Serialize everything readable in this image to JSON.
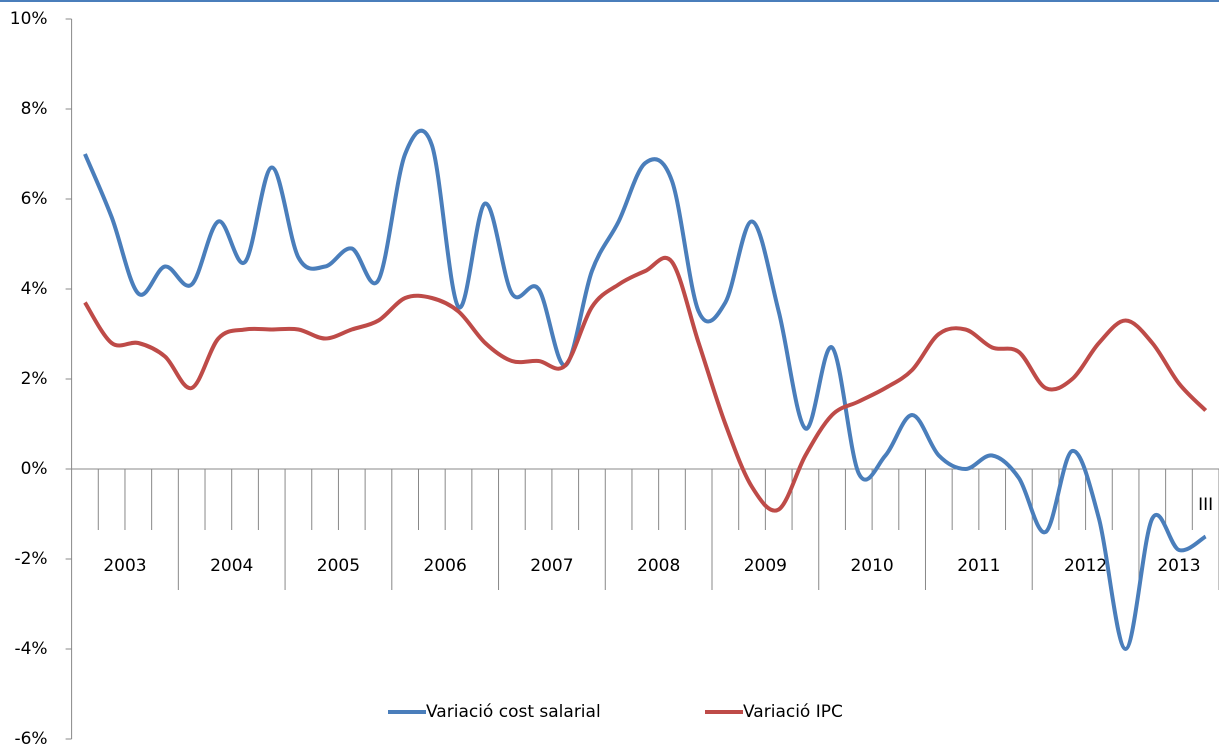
{
  "chart_data": {
    "type": "line",
    "categories": [
      null,
      null,
      null,
      null,
      null,
      null,
      null,
      null,
      null,
      null,
      null,
      null,
      null,
      null,
      null,
      null,
      null,
      null,
      null,
      null,
      null,
      null,
      null,
      null,
      null,
      null,
      null,
      null,
      null,
      null,
      null,
      null,
      null,
      null,
      null,
      null,
      null,
      null,
      null,
      null,
      null,
      null,
      "III"
    ],
    "year_groups": [
      {
        "label": "2003",
        "quarters": 4
      },
      {
        "label": "2004",
        "quarters": 4
      },
      {
        "label": "2005",
        "quarters": 4
      },
      {
        "label": "2006",
        "quarters": 4
      },
      {
        "label": "2007",
        "quarters": 4
      },
      {
        "label": "2008",
        "quarters": 4
      },
      {
        "label": "2009",
        "quarters": 4
      },
      {
        "label": "2010",
        "quarters": 4
      },
      {
        "label": "2011",
        "quarters": 4
      },
      {
        "label": "2012",
        "quarters": 4
      },
      {
        "label": "2013",
        "quarters": 3
      }
    ],
    "series": [
      {
        "name": "Variació cost salarial",
        "color": "#4a7ebb",
        "values": [
          7.0,
          5.6,
          3.9,
          4.5,
          4.1,
          5.5,
          4.6,
          6.7,
          4.7,
          4.5,
          4.9,
          4.2,
          7.0,
          7.2,
          3.6,
          5.9,
          3.9,
          4.0,
          2.3,
          4.4,
          5.5,
          6.8,
          6.4,
          3.5,
          3.7,
          5.5,
          3.5,
          0.9,
          2.7,
          -0.1,
          0.3,
          1.2,
          0.3,
          0.0,
          0.3,
          -0.2,
          -1.4,
          0.4,
          -1.1,
          -4.0,
          -1.1,
          -1.8,
          -1.5
        ]
      },
      {
        "name": "Variació IPC",
        "color": "#be4b48",
        "values": [
          3.7,
          2.8,
          2.8,
          2.5,
          1.8,
          2.9,
          3.1,
          3.1,
          3.1,
          2.9,
          3.1,
          3.3,
          3.8,
          3.8,
          3.5,
          2.8,
          2.4,
          2.4,
          2.3,
          3.6,
          4.1,
          4.4,
          4.6,
          2.8,
          1.0,
          -0.4,
          -0.9,
          0.3,
          1.2,
          1.5,
          1.8,
          2.2,
          3.0,
          3.1,
          2.7,
          2.6,
          1.8,
          2.0,
          2.8,
          3.3,
          2.8,
          1.9,
          1.3
        ]
      }
    ],
    "ylim": [
      -6,
      10
    ],
    "yticks": [
      {
        "value": -6,
        "label": "-6%"
      },
      {
        "value": -4,
        "label": "-4%"
      },
      {
        "value": -2,
        "label": "-2%"
      },
      {
        "value": 0,
        "label": "0%"
      },
      {
        "value": 2,
        "label": "2%"
      },
      {
        "value": 4,
        "label": "4%"
      },
      {
        "value": 6,
        "label": "6%"
      },
      {
        "value": 8,
        "label": "8%"
      },
      {
        "value": 10,
        "label": "10%"
      }
    ],
    "legend": "bottom"
  }
}
